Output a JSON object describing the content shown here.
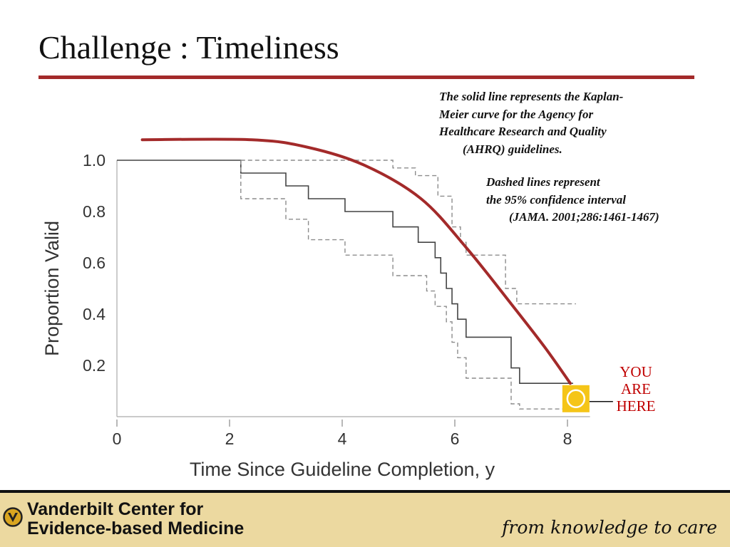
{
  "slide": {
    "title": "Challenge : Timeliness",
    "note_ahrq": [
      "The solid line represents the Kaplan-",
      "Meier curve for the Agency for",
      "Healthcare Research and Quality",
      "(AHRQ) guidelines."
    ],
    "note_ci": [
      "Dashed lines represent",
      "the 95% confidence interval",
      "(JAMA. 2001;286:1461-1467)"
    ],
    "marker_label": [
      "YOU",
      "ARE",
      "HERE"
    ],
    "colors": {
      "accent": "#a32a2a",
      "marker_fill": "#f5c518",
      "marker_text": "#c00000",
      "footer_bg": "#ecd9a0"
    }
  },
  "footer": {
    "org_name": [
      "Vanderbilt Center for",
      "Evidence-based Medicine"
    ],
    "tagline": "from knowledge to care",
    "logo_icon": "vanderbilt-seal-icon"
  },
  "chart_data": {
    "type": "line",
    "xlabel": "Time Since Guideline Completion, y",
    "ylabel": "Proportion Valid",
    "xlim": [
      0,
      8.4
    ],
    "ylim": [
      0,
      1.08
    ],
    "x_ticks": [
      "0",
      "2",
      "4",
      "6",
      "8"
    ],
    "y_ticks": [
      "0.2",
      "0.4",
      "0.6",
      "0.8",
      "1.0"
    ],
    "grid": false,
    "series": [
      {
        "style": "step-solid",
        "x": [
          0,
          2.2,
          2.2,
          3.0,
          3.0,
          3.4,
          3.4,
          4.05,
          4.05,
          4.9,
          4.9,
          5.35,
          5.35,
          5.65,
          5.65,
          5.75,
          5.75,
          5.85,
          5.85,
          5.95,
          5.95,
          6.05,
          6.05,
          6.2,
          6.2,
          7.0,
          7.0,
          7.15,
          7.15,
          8.1
        ],
        "y": [
          1.0,
          1.0,
          0.95,
          0.95,
          0.9,
          0.9,
          0.85,
          0.85,
          0.8,
          0.8,
          0.74,
          0.74,
          0.68,
          0.68,
          0.62,
          0.62,
          0.56,
          0.56,
          0.5,
          0.5,
          0.44,
          0.44,
          0.38,
          0.38,
          0.31,
          0.31,
          0.19,
          0.19,
          0.13,
          0.13
        ]
      },
      {
        "style": "step-dashed-upper",
        "x": [
          2.2,
          4.9,
          4.9,
          5.3,
          5.3,
          5.7,
          5.7,
          5.95,
          5.95,
          6.1,
          6.1,
          6.2,
          6.2,
          6.9,
          6.9,
          7.1,
          7.1,
          8.15
        ],
        "y": [
          1.0,
          1.0,
          0.97,
          0.97,
          0.94,
          0.94,
          0.86,
          0.86,
          0.74,
          0.74,
          0.68,
          0.68,
          0.63,
          0.63,
          0.5,
          0.5,
          0.44,
          0.44
        ]
      },
      {
        "style": "step-dashed-lower",
        "x": [
          2.2,
          2.2,
          3.0,
          3.0,
          3.4,
          3.4,
          4.05,
          4.05,
          4.9,
          4.9,
          5.5,
          5.5,
          5.65,
          5.65,
          5.85,
          5.85,
          5.95,
          5.95,
          6.05,
          6.05,
          6.2,
          6.2,
          7.0,
          7.0,
          7.15,
          7.15,
          8.15
        ],
        "y": [
          1.0,
          0.85,
          0.85,
          0.77,
          0.77,
          0.69,
          0.69,
          0.63,
          0.63,
          0.55,
          0.55,
          0.49,
          0.49,
          0.43,
          0.43,
          0.37,
          0.37,
          0.29,
          0.29,
          0.23,
          0.23,
          0.15,
          0.15,
          0.05,
          0.05,
          0.03,
          0.03
        ]
      },
      {
        "style": "curve-red",
        "x": [
          0.45,
          2.4,
          3.4,
          4.4,
          5.4,
          6.2,
          7.0,
          7.6,
          8.05
        ],
        "y": [
          1.08,
          1.08,
          1.05,
          0.98,
          0.85,
          0.66,
          0.44,
          0.27,
          0.13
        ]
      }
    ],
    "marker": {
      "x": 8.15,
      "y": 0.07
    }
  }
}
